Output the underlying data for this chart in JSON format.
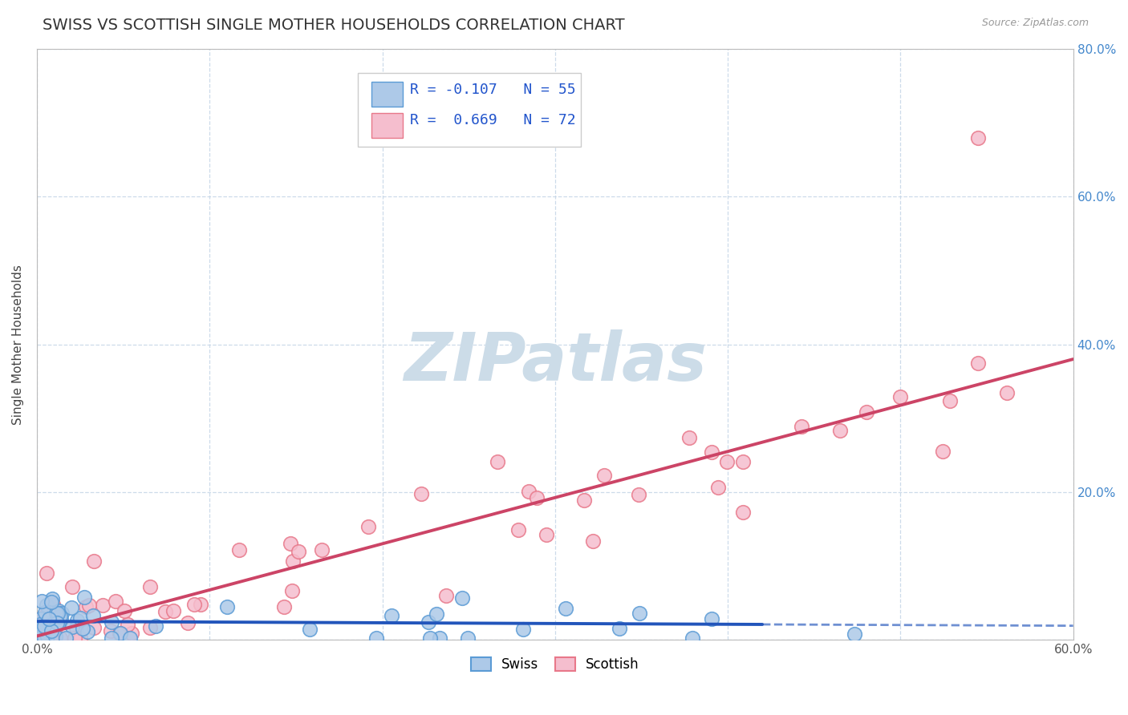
{
  "title": "SWISS VS SCOTTISH SINGLE MOTHER HOUSEHOLDS CORRELATION CHART",
  "source_text": "Source: ZipAtlas.com",
  "ylabel": "Single Mother Households",
  "xlim": [
    0.0,
    0.6
  ],
  "ylim": [
    0.0,
    0.8
  ],
  "xtick_positions": [
    0.0,
    0.1,
    0.2,
    0.3,
    0.4,
    0.5,
    0.6
  ],
  "xticklabels": [
    "0.0%",
    "",
    "",
    "",
    "",
    "",
    "60.0%"
  ],
  "ytick_positions": [
    0.0,
    0.2,
    0.4,
    0.6,
    0.8
  ],
  "yticklabels_right": [
    "",
    "20.0%",
    "40.0%",
    "60.0%",
    "80.0%"
  ],
  "swiss_R": -0.107,
  "swiss_N": 55,
  "scottish_R": 0.669,
  "scottish_N": 72,
  "swiss_color": "#adc9e8",
  "swiss_edge_color": "#5b9bd5",
  "scottish_color": "#f5bece",
  "scottish_edge_color": "#e8788a",
  "trend_swiss_color": "#2255bb",
  "trend_scottish_color": "#cc4466",
  "grid_color": "#c8d8e8",
  "background_color": "#ffffff",
  "watermark_text": "ZIPatlas",
  "watermark_color": "#ccdce8",
  "title_fontsize": 14,
  "legend_R_color": "#2255cc",
  "legend_N_color": "#2255cc",
  "right_axis_color": "#4488cc",
  "swiss_trend_intercept": 0.025,
  "swiss_trend_slope": -0.01,
  "scottish_trend_intercept": 0.005,
  "scottish_trend_slope": 0.625
}
